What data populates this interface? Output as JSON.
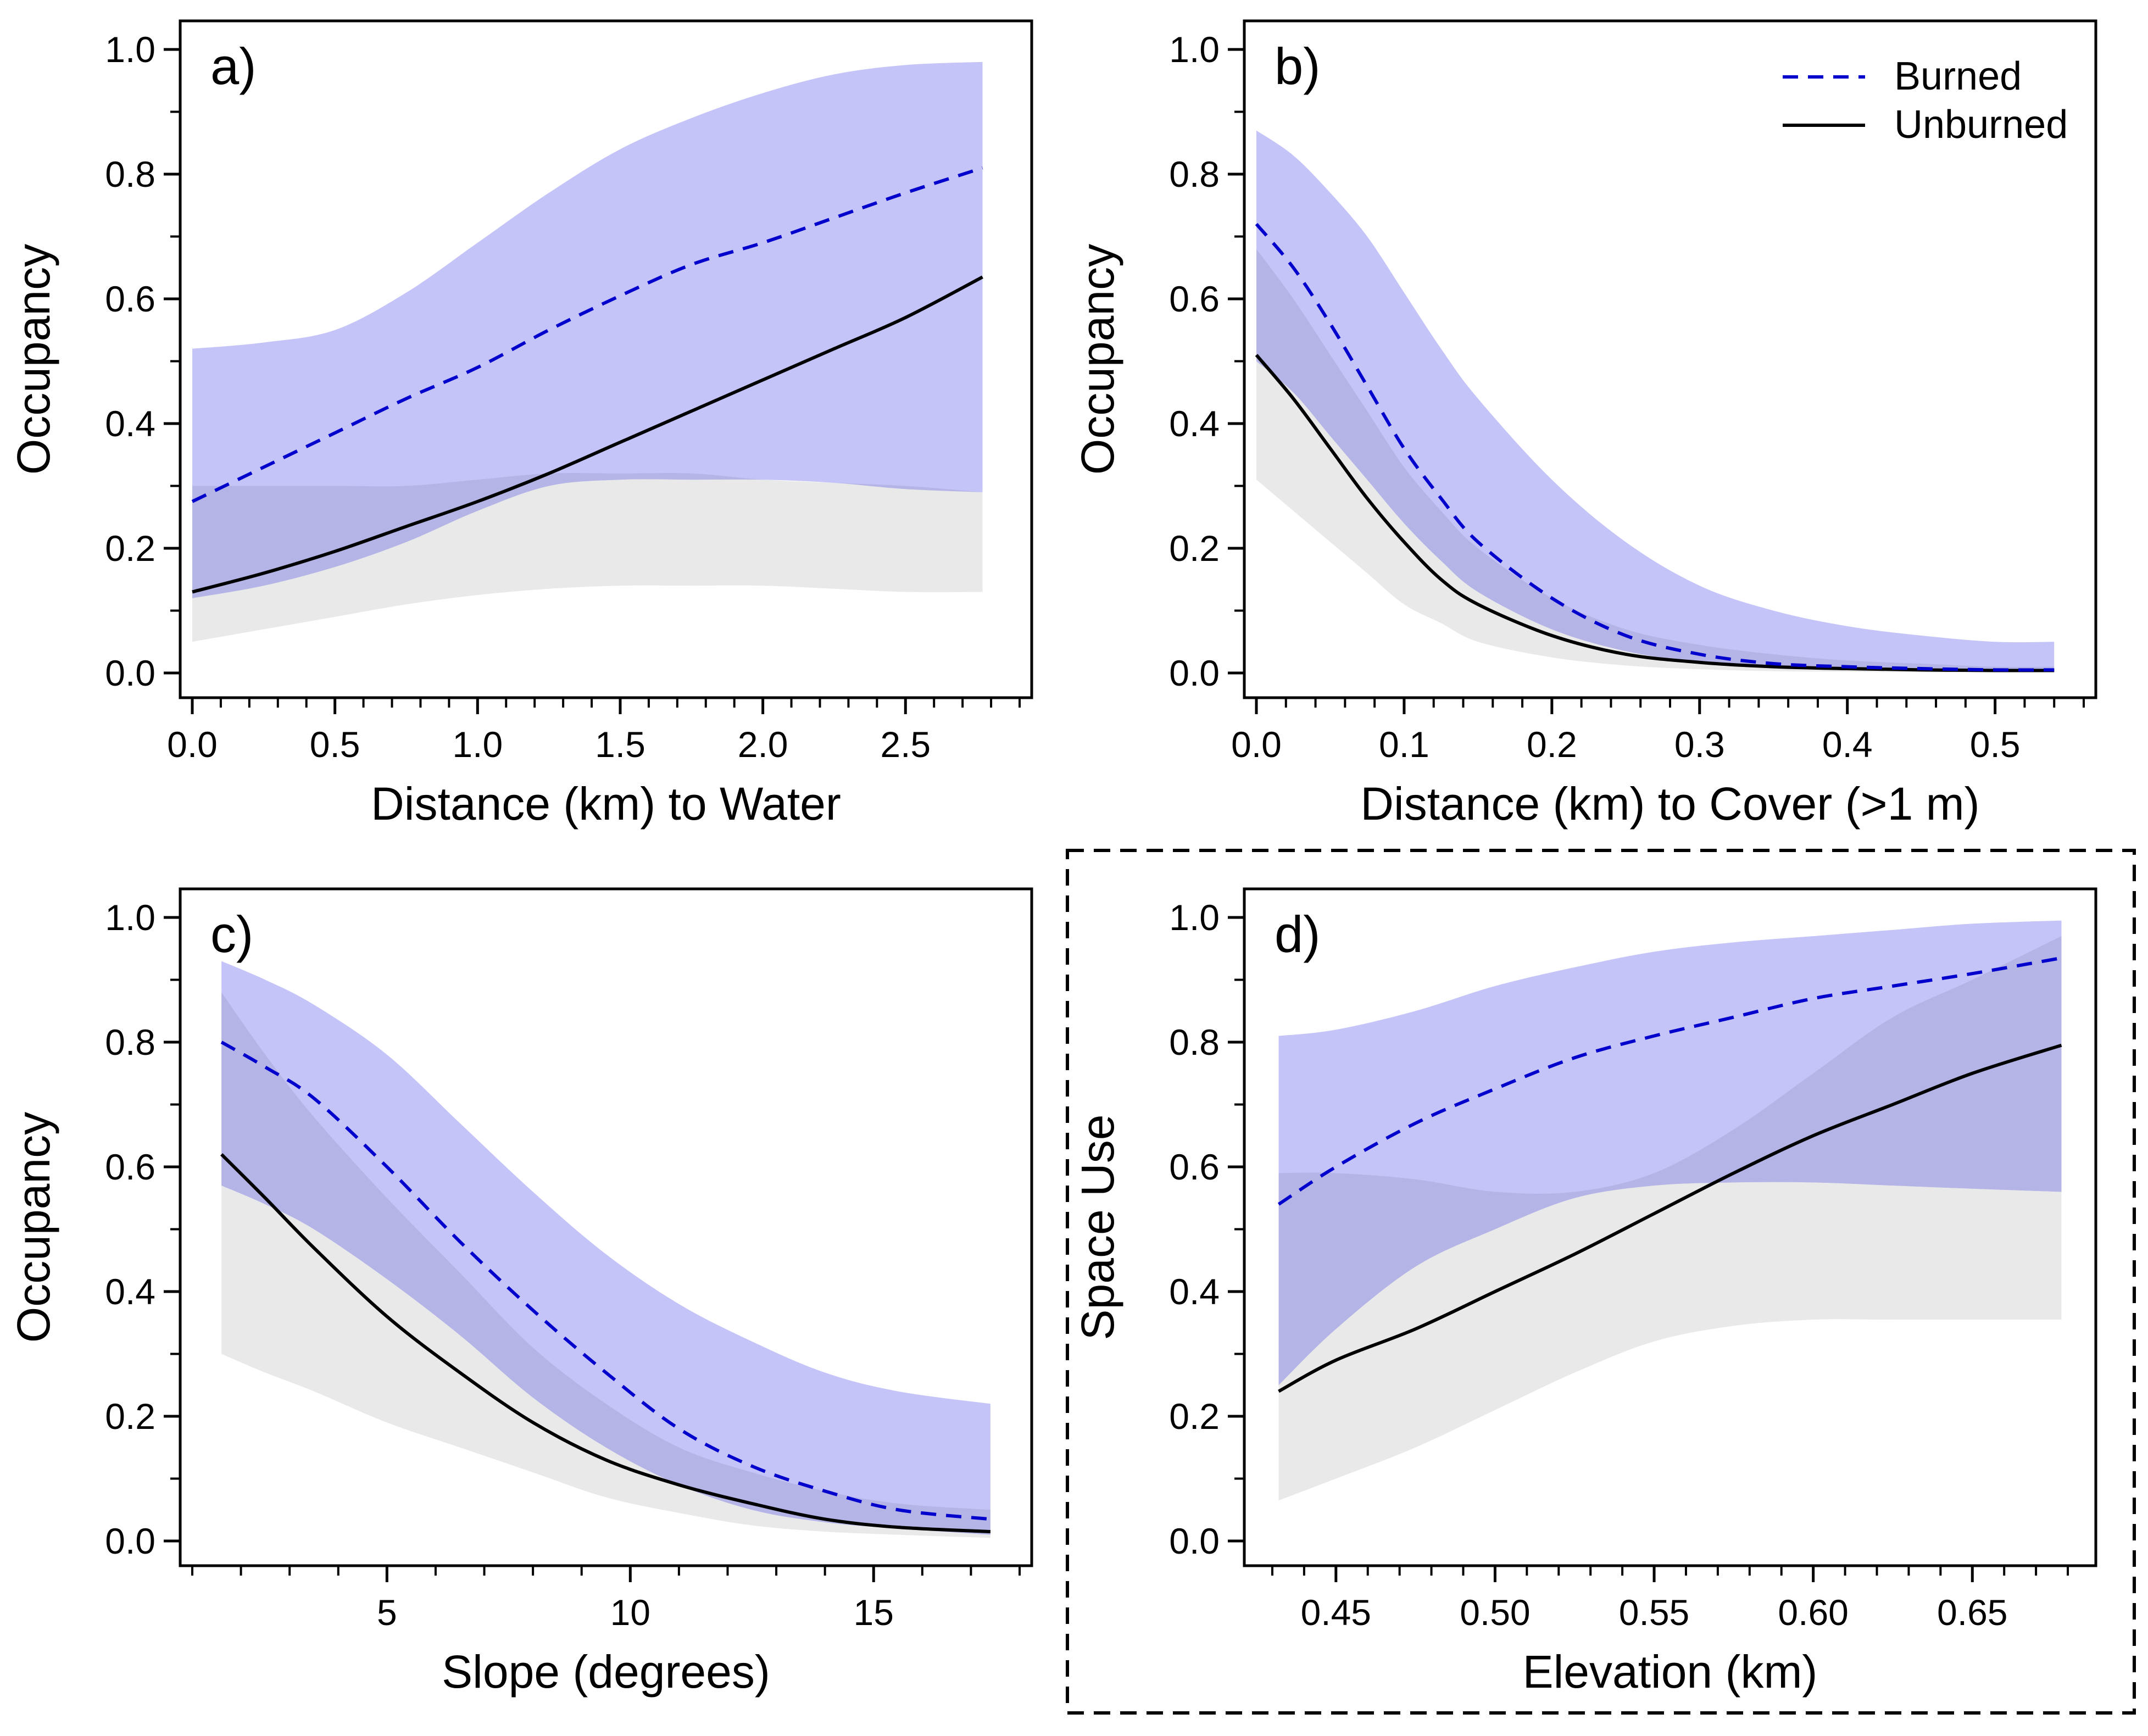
{
  "legend": {
    "burned_label": "Burned",
    "unburned_label": "Unburned",
    "burned_color": "#0000cc",
    "unburned_color": "#000000",
    "burned_band_color": "#c4c4f8",
    "unburned_band_color": "#e9e9e9",
    "overlap_band_color": "#b4b4e6"
  },
  "chart_data": [
    {
      "type": "line",
      "panel_label": "a)",
      "xlabel": "Distance (km) to Water",
      "ylabel": "Occupancy",
      "xlim": [
        0,
        2.9
      ],
      "ylim": [
        0,
        1
      ],
      "xticks": [
        0.0,
        0.5,
        1.0,
        1.5,
        2.0,
        2.5
      ],
      "xtick_labels": [
        "0.0",
        "0.5",
        "1.0",
        "1.5",
        "2.0",
        "2.5"
      ],
      "xminor_step": 0.1,
      "yticks": [
        0.0,
        0.2,
        0.4,
        0.6,
        0.8,
        1.0
      ],
      "ytick_labels": [
        "0.0",
        "0.2",
        "0.4",
        "0.6",
        "0.8",
        "1.0"
      ],
      "grid": false,
      "legend": false,
      "series": [
        {
          "name": "Unburned",
          "x": [
            0,
            0.25,
            0.5,
            0.75,
            1.0,
            1.25,
            1.5,
            1.75,
            2.0,
            2.25,
            2.5,
            2.77
          ],
          "y": [
            0.13,
            0.16,
            0.195,
            0.235,
            0.275,
            0.32,
            0.37,
            0.42,
            0.47,
            0.52,
            0.57,
            0.635
          ],
          "lower": [
            0.05,
            0.07,
            0.09,
            0.11,
            0.125,
            0.135,
            0.14,
            0.14,
            0.14,
            0.135,
            0.13,
            0.13
          ],
          "upper": [
            0.3,
            0.3,
            0.3,
            0.3,
            0.31,
            0.32,
            0.32,
            0.32,
            0.31,
            0.305,
            0.3,
            0.29
          ]
        },
        {
          "name": "Burned",
          "x": [
            0,
            0.25,
            0.5,
            0.75,
            1.0,
            1.25,
            1.5,
            1.75,
            2.0,
            2.25,
            2.5,
            2.77
          ],
          "y": [
            0.275,
            0.33,
            0.385,
            0.44,
            0.49,
            0.55,
            0.605,
            0.655,
            0.69,
            0.73,
            0.77,
            0.81
          ],
          "lower": [
            0.12,
            0.14,
            0.17,
            0.21,
            0.26,
            0.3,
            0.31,
            0.31,
            0.31,
            0.305,
            0.295,
            0.29
          ],
          "upper": [
            0.52,
            0.53,
            0.55,
            0.61,
            0.69,
            0.77,
            0.84,
            0.89,
            0.93,
            0.96,
            0.975,
            0.98
          ]
        }
      ]
    },
    {
      "type": "line",
      "panel_label": "b)",
      "xlabel": "Distance (km) to Cover (>1 m)",
      "ylabel": "Occupancy",
      "xlim": [
        0,
        0.56
      ],
      "ylim": [
        0,
        1
      ],
      "xticks": [
        0.0,
        0.1,
        0.2,
        0.3,
        0.4,
        0.5
      ],
      "xtick_labels": [
        "0.0",
        "0.1",
        "0.2",
        "0.3",
        "0.4",
        "0.5"
      ],
      "xminor_step": 0.02,
      "yticks": [
        0.0,
        0.2,
        0.4,
        0.6,
        0.8,
        1.0
      ],
      "ytick_labels": [
        "0.0",
        "0.2",
        "0.4",
        "0.6",
        "0.8",
        "1.0"
      ],
      "grid": false,
      "legend": true,
      "legend_position": "top-right",
      "series": [
        {
          "name": "Unburned",
          "x": [
            0,
            0.025,
            0.05,
            0.075,
            0.1,
            0.125,
            0.15,
            0.2,
            0.25,
            0.3,
            0.35,
            0.4,
            0.45,
            0.5,
            0.54
          ],
          "y": [
            0.51,
            0.44,
            0.36,
            0.28,
            0.21,
            0.15,
            0.11,
            0.06,
            0.03,
            0.017,
            0.01,
            0.007,
            0.005,
            0.004,
            0.004
          ],
          "lower": [
            0.31,
            0.26,
            0.21,
            0.16,
            0.11,
            0.08,
            0.05,
            0.025,
            0.012,
            0.006,
            0.003,
            0.002,
            0.001,
            0.001,
            0.001
          ],
          "upper": [
            0.68,
            0.6,
            0.51,
            0.42,
            0.33,
            0.26,
            0.2,
            0.12,
            0.07,
            0.045,
            0.03,
            0.02,
            0.015,
            0.01,
            0.01
          ]
        },
        {
          "name": "Burned",
          "x": [
            0,
            0.025,
            0.05,
            0.075,
            0.1,
            0.125,
            0.15,
            0.2,
            0.25,
            0.3,
            0.35,
            0.4,
            0.45,
            0.5,
            0.54
          ],
          "y": [
            0.72,
            0.65,
            0.56,
            0.46,
            0.36,
            0.28,
            0.21,
            0.12,
            0.06,
            0.03,
            0.015,
            0.01,
            0.007,
            0.005,
            0.005
          ],
          "lower": [
            0.5,
            0.45,
            0.38,
            0.31,
            0.24,
            0.18,
            0.13,
            0.07,
            0.035,
            0.017,
            0.009,
            0.005,
            0.003,
            0.002,
            0.002
          ],
          "upper": [
            0.87,
            0.83,
            0.77,
            0.7,
            0.61,
            0.52,
            0.44,
            0.31,
            0.21,
            0.14,
            0.1,
            0.075,
            0.06,
            0.05,
            0.05
          ]
        }
      ]
    },
    {
      "type": "line",
      "panel_label": "c)",
      "xlabel": "Slope (degrees)",
      "ylabel": "Occupancy",
      "xlim": [
        1,
        18
      ],
      "ylim": [
        0,
        1
      ],
      "xticks": [
        5,
        10,
        15
      ],
      "xtick_labels": [
        "5",
        "10",
        "15"
      ],
      "xminor_step": 1,
      "yticks": [
        0.0,
        0.2,
        0.4,
        0.6,
        0.8,
        1.0
      ],
      "ytick_labels": [
        "0.0",
        "0.2",
        "0.4",
        "0.6",
        "0.8",
        "1.0"
      ],
      "grid": false,
      "legend": false,
      "series": [
        {
          "name": "Unburned",
          "x": [
            1.6,
            2.5,
            3.5,
            5,
            6.5,
            8,
            9.5,
            11,
            12.5,
            14,
            15.5,
            17.4
          ],
          "y": [
            0.62,
            0.55,
            0.47,
            0.36,
            0.27,
            0.19,
            0.13,
            0.09,
            0.06,
            0.035,
            0.022,
            0.015
          ],
          "lower": [
            0.3,
            0.27,
            0.24,
            0.19,
            0.15,
            0.11,
            0.07,
            0.045,
            0.025,
            0.015,
            0.01,
            0.005
          ],
          "upper": [
            0.88,
            0.78,
            0.68,
            0.55,
            0.43,
            0.31,
            0.22,
            0.15,
            0.11,
            0.08,
            0.06,
            0.05
          ]
        },
        {
          "name": "Burned",
          "x": [
            1.6,
            2.5,
            3.5,
            5,
            6.5,
            8,
            9.5,
            11,
            12.5,
            14,
            15.5,
            17.4
          ],
          "y": [
            0.8,
            0.76,
            0.71,
            0.6,
            0.48,
            0.37,
            0.27,
            0.18,
            0.12,
            0.08,
            0.05,
            0.035
          ],
          "lower": [
            0.57,
            0.54,
            0.5,
            0.42,
            0.33,
            0.23,
            0.15,
            0.09,
            0.05,
            0.03,
            0.02,
            0.01
          ],
          "upper": [
            0.93,
            0.9,
            0.86,
            0.78,
            0.67,
            0.56,
            0.46,
            0.38,
            0.32,
            0.27,
            0.24,
            0.22
          ]
        }
      ]
    },
    {
      "type": "line",
      "panel_label": "d)",
      "xlabel": "Elevation (km)",
      "ylabel": "Space Use",
      "xlim": [
        0.425,
        0.685
      ],
      "ylim": [
        0,
        1
      ],
      "xticks": [
        0.45,
        0.5,
        0.55,
        0.6,
        0.65
      ],
      "xtick_labels": [
        "0.45",
        "0.50",
        "0.55",
        "0.60",
        "0.65"
      ],
      "xminor_step": 0.01,
      "yticks": [
        0.0,
        0.2,
        0.4,
        0.6,
        0.8,
        1.0
      ],
      "ytick_labels": [
        "0.0",
        "0.2",
        "0.4",
        "0.6",
        "0.8",
        "1.0"
      ],
      "grid": false,
      "legend": false,
      "highlighted": true,
      "series": [
        {
          "name": "Unburned",
          "x": [
            0.432,
            0.45,
            0.475,
            0.5,
            0.525,
            0.55,
            0.575,
            0.6,
            0.625,
            0.65,
            0.678
          ],
          "y": [
            0.24,
            0.29,
            0.34,
            0.4,
            0.46,
            0.525,
            0.59,
            0.65,
            0.7,
            0.75,
            0.795
          ],
          "lower": [
            0.065,
            0.1,
            0.15,
            0.21,
            0.27,
            0.32,
            0.345,
            0.355,
            0.355,
            0.355,
            0.355
          ],
          "upper": [
            0.59,
            0.59,
            0.58,
            0.56,
            0.56,
            0.59,
            0.66,
            0.75,
            0.84,
            0.9,
            0.97
          ]
        },
        {
          "name": "Burned",
          "x": [
            0.432,
            0.45,
            0.475,
            0.5,
            0.525,
            0.55,
            0.575,
            0.6,
            0.625,
            0.65,
            0.678
          ],
          "y": [
            0.54,
            0.6,
            0.67,
            0.725,
            0.775,
            0.81,
            0.84,
            0.87,
            0.89,
            0.91,
            0.935
          ],
          "lower": [
            0.25,
            0.34,
            0.44,
            0.5,
            0.55,
            0.57,
            0.575,
            0.575,
            0.57,
            0.565,
            0.56
          ],
          "upper": [
            0.81,
            0.82,
            0.85,
            0.89,
            0.92,
            0.945,
            0.96,
            0.97,
            0.98,
            0.99,
            0.995
          ]
        }
      ]
    }
  ]
}
